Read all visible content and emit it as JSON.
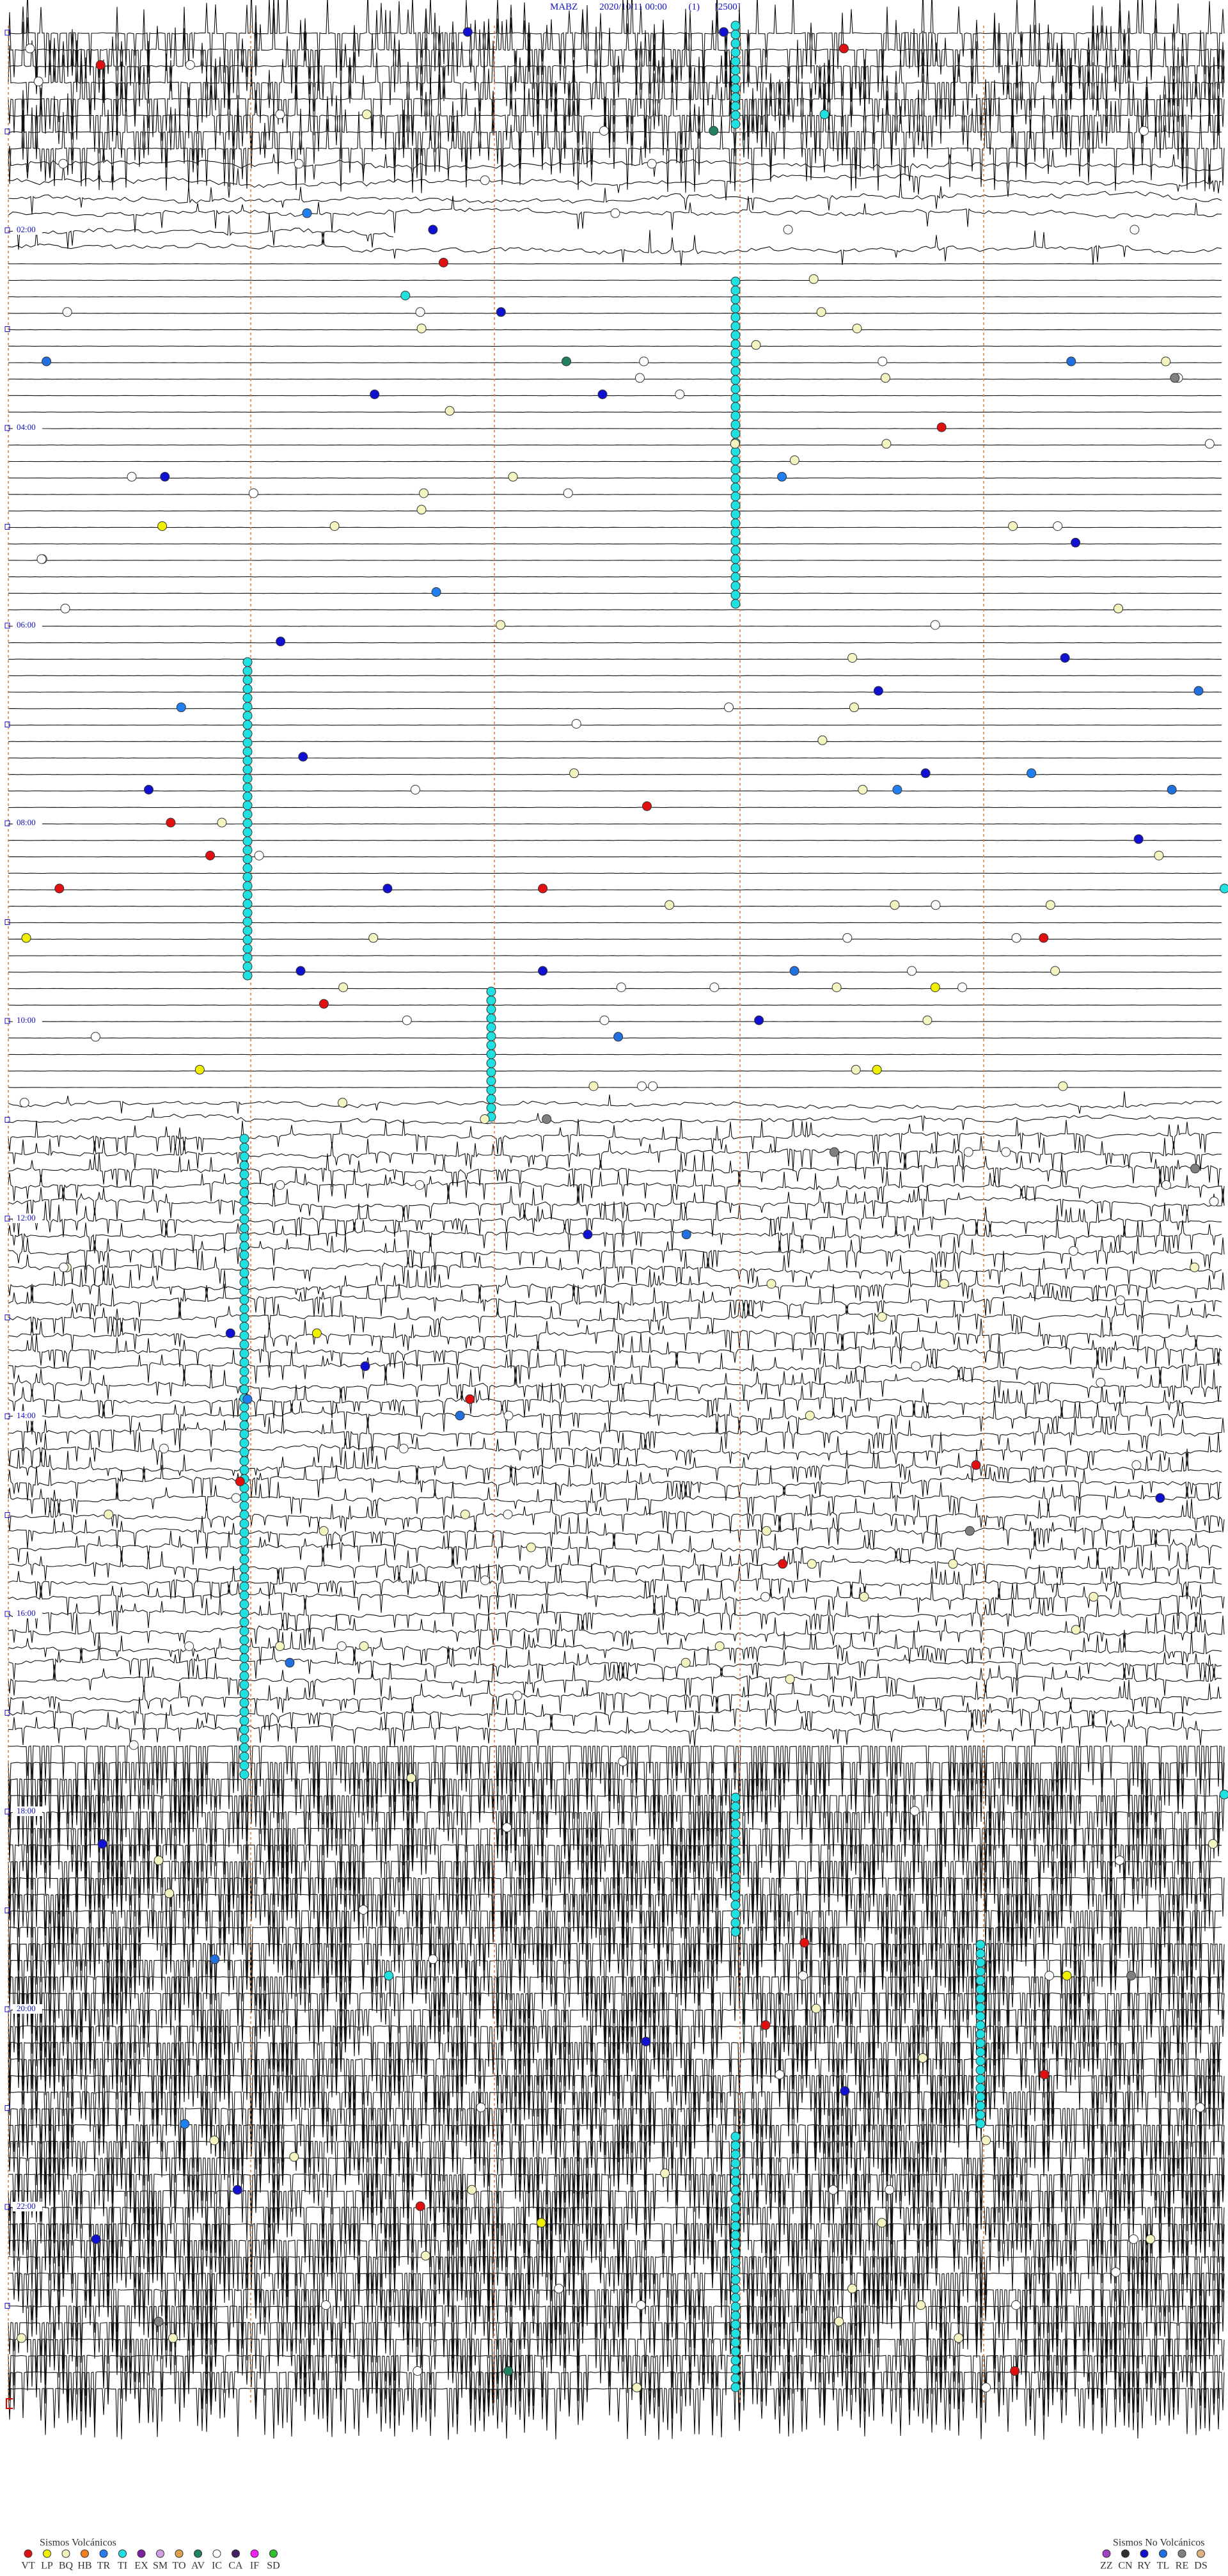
{
  "header": {
    "station": "MABZ",
    "datetime": "2020/10/11 00:00",
    "channel": "(1)",
    "scale": "[2500]"
  },
  "time_labels": [
    "02:00",
    "04:00",
    "06:00",
    "08:00",
    "10:00",
    "12:00",
    "14:00",
    "16:00",
    "18:00",
    "20:00",
    "22:00"
  ],
  "legend": {
    "volcanic": {
      "title": "Sismos Volcánicos",
      "items": [
        {
          "code": "VT",
          "color": "#e01010"
        },
        {
          "code": "LP",
          "color": "#f0f000"
        },
        {
          "code": "BQ",
          "color": "#f4f4c0"
        },
        {
          "code": "HB",
          "color": "#f08020"
        },
        {
          "code": "TR",
          "color": "#2080f0"
        },
        {
          "code": "TI",
          "color": "#20e0e0"
        },
        {
          "code": "EX",
          "color": "#8020a0"
        },
        {
          "code": "SM",
          "color": "#d0a0e0"
        },
        {
          "code": "TO",
          "color": "#e0a050"
        },
        {
          "code": "AV",
          "color": "#208060"
        },
        {
          "code": "IC",
          "color": "#ffffff"
        },
        {
          "code": "CA",
          "color": "#402060"
        },
        {
          "code": "IF",
          "color": "#f020f0"
        },
        {
          "code": "SD",
          "color": "#30c030"
        }
      ]
    },
    "non_volcanic": {
      "title": "Sismos No Volcánicos",
      "items": [
        {
          "code": "ZZ",
          "color": "#a040c0"
        },
        {
          "code": "CN",
          "color": "#303030"
        },
        {
          "code": "RY",
          "color": "#1010d0"
        },
        {
          "code": "TL",
          "color": "#2070e0"
        },
        {
          "code": "RE",
          "color": "#808080"
        },
        {
          "code": "DS",
          "color": "#e0b080"
        }
      ]
    }
  }
}
